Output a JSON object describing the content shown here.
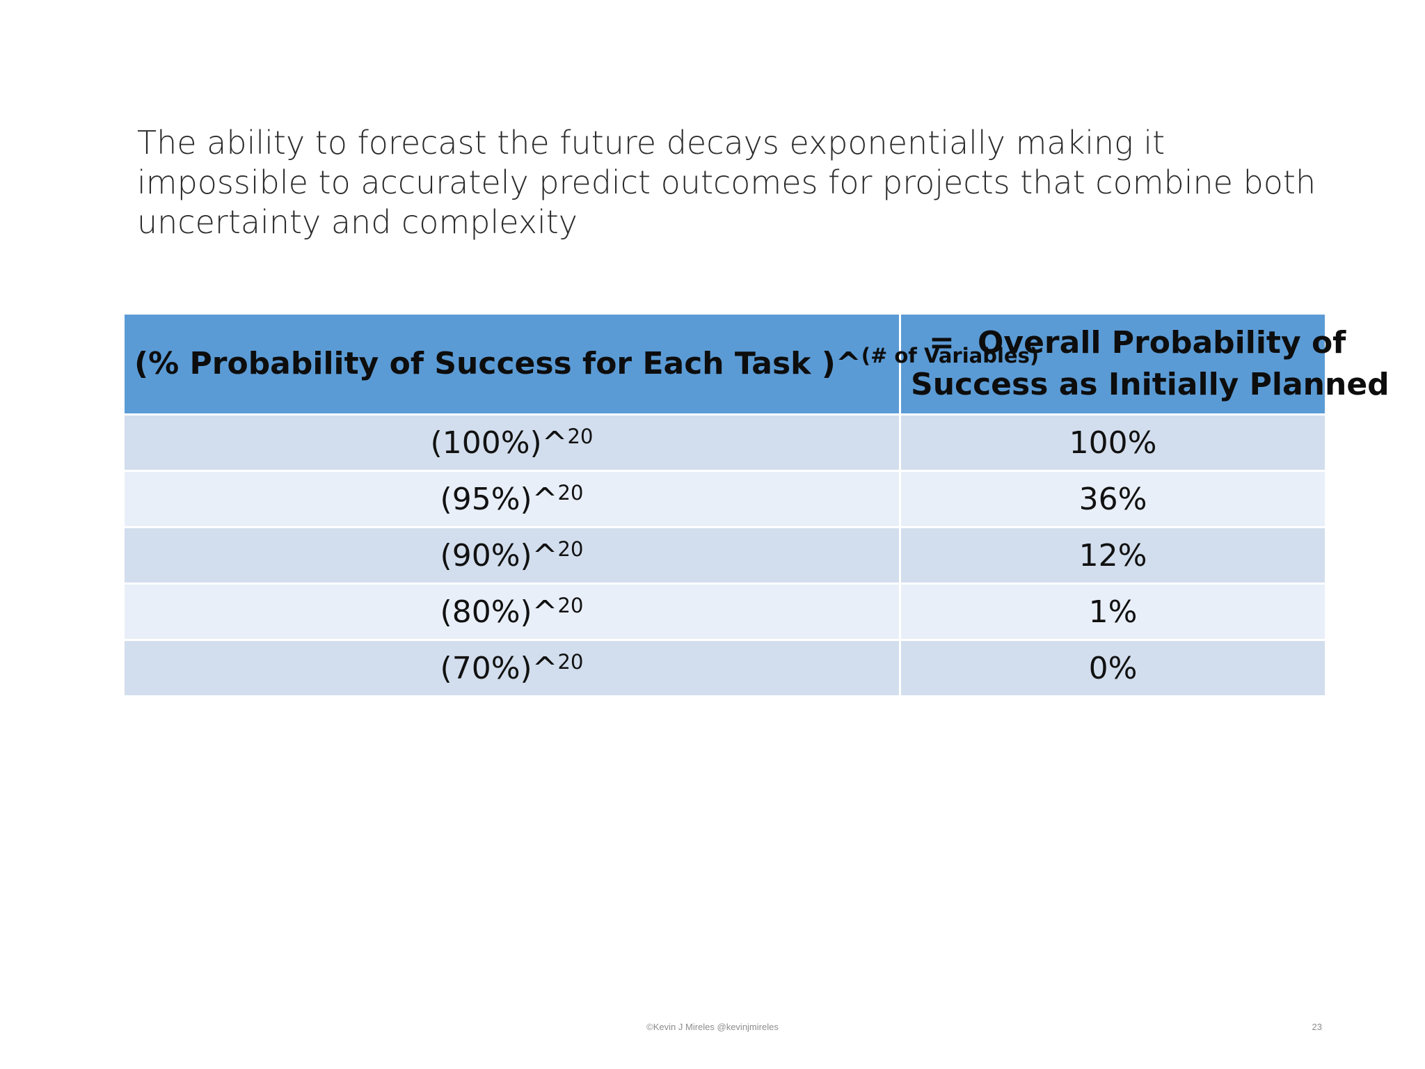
{
  "slide": {
    "title": "The ability to forecast the future decays exponentially making it impossible to accurately predict outcomes for projects that combine both uncertainty and complexity"
  },
  "table": {
    "header": {
      "col1_main": "(% Probability of Success for Each Task )^",
      "col1_sup": "(# of Variables)",
      "col2_eq": "=",
      "col2_line1": "Overall Probability of",
      "col2_line2": "Success as Initially Planned"
    },
    "rows": [
      {
        "base": "(100%)^",
        "exp": "20",
        "result": "100%"
      },
      {
        "base": "(95%)^",
        "exp": "20",
        "result": "36%"
      },
      {
        "base": "(90%)^",
        "exp": "20",
        "result": "12%"
      },
      {
        "base": "(80%)^",
        "exp": "20",
        "result": "1%"
      },
      {
        "base": "(70%)^",
        "exp": "20",
        "result": "0%"
      }
    ]
  },
  "footer": {
    "credit": "©Kevin J Mireles @kevinjmireles",
    "page_number": "23"
  }
}
